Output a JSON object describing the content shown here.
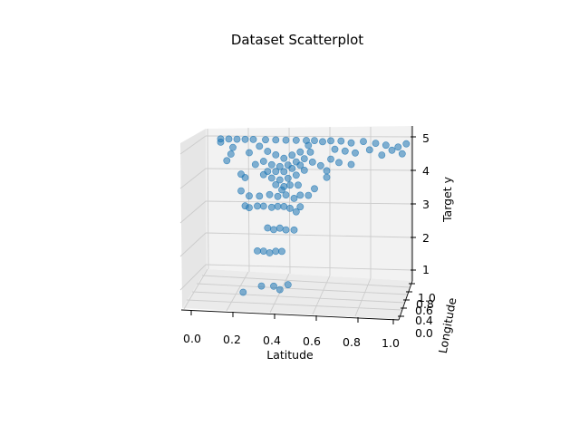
{
  "chart_data": {
    "type": "scatter",
    "projection": "3d",
    "title": "Dataset Scatterplot",
    "xlabel": "Latitude",
    "ylabel": "Longitude",
    "zlabel": "Target y",
    "xlim": [
      0.0,
      1.0
    ],
    "ylim": [
      0.0,
      1.0
    ],
    "zlim": [
      1.0,
      5.0
    ],
    "xticks": [
      "0.0",
      "0.2",
      "0.4",
      "0.6",
      "0.8",
      "1.0"
    ],
    "yticks": [
      "0.0",
      "0.2",
      "0.4",
      "0.6",
      "0.8",
      "1.0"
    ],
    "zticks": [
      "1",
      "2",
      "3",
      "4",
      "5"
    ],
    "grid": true,
    "marker_color": "#1f77b4",
    "marker_alpha": 0.55,
    "series": [
      {
        "points": [
          [
            0.28,
            0.5,
            4.95
          ],
          [
            0.33,
            0.5,
            4.95
          ],
          [
            0.38,
            0.5,
            4.95
          ],
          [
            0.43,
            0.5,
            4.95
          ],
          [
            0.48,
            0.5,
            4.95
          ],
          [
            0.06,
            0.5,
            4.95
          ],
          [
            0.1,
            0.5,
            4.95
          ],
          [
            0.14,
            0.5,
            4.95
          ],
          [
            0.18,
            0.5,
            4.95
          ],
          [
            0.22,
            0.5,
            4.95
          ],
          [
            0.52,
            0.5,
            4.95
          ],
          [
            0.56,
            0.5,
            4.92
          ],
          [
            0.6,
            0.5,
            4.95
          ],
          [
            0.65,
            0.5,
            4.95
          ],
          [
            0.7,
            0.5,
            4.9
          ],
          [
            0.76,
            0.5,
            4.95
          ],
          [
            0.82,
            0.5,
            4.9
          ],
          [
            0.87,
            0.5,
            4.85
          ],
          [
            0.93,
            0.5,
            4.8
          ],
          [
            0.97,
            0.5,
            4.9
          ],
          [
            0.62,
            0.5,
            4.7
          ],
          [
            0.67,
            0.5,
            4.65
          ],
          [
            0.72,
            0.5,
            4.6
          ],
          [
            0.79,
            0.5,
            4.7
          ],
          [
            0.85,
            0.5,
            4.55
          ],
          [
            0.9,
            0.5,
            4.7
          ],
          [
            0.95,
            0.5,
            4.6
          ],
          [
            0.6,
            0.5,
            4.4
          ],
          [
            0.64,
            0.5,
            4.3
          ],
          [
            0.7,
            0.5,
            4.25
          ],
          [
            0.55,
            0.5,
            4.2
          ],
          [
            0.58,
            0.5,
            4.05
          ],
          [
            0.58,
            0.5,
            3.85
          ],
          [
            0.52,
            0.5,
            3.5
          ],
          [
            0.11,
            0.5,
            4.5
          ],
          [
            0.12,
            0.5,
            4.7
          ],
          [
            0.09,
            0.5,
            4.3
          ],
          [
            0.06,
            0.5,
            4.85
          ],
          [
            0.16,
            0.5,
            3.9
          ],
          [
            0.18,
            0.5,
            3.8
          ],
          [
            0.16,
            0.5,
            3.4
          ],
          [
            0.18,
            0.5,
            2.95
          ],
          [
            0.2,
            0.5,
            2.9
          ],
          [
            0.2,
            0.5,
            3.25
          ],
          [
            0.24,
            0.5,
            2.95
          ],
          [
            0.27,
            0.5,
            2.95
          ],
          [
            0.31,
            0.5,
            2.92
          ],
          [
            0.34,
            0.5,
            2.95
          ],
          [
            0.37,
            0.5,
            2.95
          ],
          [
            0.4,
            0.5,
            2.9
          ],
          [
            0.43,
            0.5,
            2.8
          ],
          [
            0.45,
            0.5,
            2.95
          ],
          [
            0.25,
            0.5,
            3.25
          ],
          [
            0.3,
            0.5,
            3.3
          ],
          [
            0.34,
            0.5,
            3.25
          ],
          [
            0.38,
            0.5,
            3.3
          ],
          [
            0.42,
            0.5,
            3.2
          ],
          [
            0.45,
            0.5,
            3.3
          ],
          [
            0.49,
            0.5,
            3.3
          ],
          [
            0.44,
            0.5,
            3.6
          ],
          [
            0.29,
            0.5,
            2.3
          ],
          [
            0.32,
            0.5,
            2.25
          ],
          [
            0.35,
            0.5,
            2.3
          ],
          [
            0.38,
            0.5,
            2.25
          ],
          [
            0.42,
            0.5,
            2.25
          ],
          [
            0.24,
            0.5,
            1.6
          ],
          [
            0.27,
            0.5,
            1.6
          ],
          [
            0.3,
            0.5,
            1.55
          ],
          [
            0.33,
            0.5,
            1.6
          ],
          [
            0.36,
            0.5,
            1.6
          ],
          [
            0.17,
            0.5,
            0.35
          ],
          [
            0.26,
            0.5,
            0.55
          ],
          [
            0.32,
            0.5,
            0.55
          ],
          [
            0.35,
            0.5,
            0.45
          ],
          [
            0.39,
            0.5,
            0.6
          ],
          [
            0.2,
            0.5,
            4.55
          ],
          [
            0.23,
            0.5,
            4.2
          ],
          [
            0.27,
            0.5,
            3.9
          ],
          [
            0.31,
            0.5,
            3.8
          ],
          [
            0.35,
            0.5,
            3.75
          ],
          [
            0.39,
            0.5,
            3.8
          ],
          [
            0.43,
            0.5,
            3.9
          ],
          [
            0.47,
            0.5,
            4.05
          ],
          [
            0.51,
            0.5,
            4.3
          ],
          [
            0.5,
            0.5,
            4.6
          ],
          [
            0.25,
            0.5,
            4.75
          ],
          [
            0.29,
            0.5,
            4.6
          ],
          [
            0.33,
            0.5,
            4.5
          ],
          [
            0.37,
            0.5,
            4.4
          ],
          [
            0.41,
            0.5,
            4.5
          ],
          [
            0.45,
            0.5,
            4.6
          ],
          [
            0.49,
            0.5,
            4.8
          ],
          [
            0.27,
            0.5,
            4.3
          ],
          [
            0.31,
            0.5,
            4.2
          ],
          [
            0.35,
            0.5,
            4.15
          ],
          [
            0.39,
            0.5,
            4.2
          ],
          [
            0.43,
            0.5,
            4.3
          ],
          [
            0.47,
            0.5,
            4.4
          ],
          [
            0.29,
            0.5,
            4.0
          ],
          [
            0.33,
            0.5,
            4.0
          ],
          [
            0.37,
            0.5,
            4.0
          ],
          [
            0.41,
            0.5,
            4.1
          ],
          [
            0.45,
            0.5,
            4.2
          ],
          [
            0.33,
            0.5,
            3.6
          ],
          [
            0.37,
            0.5,
            3.55
          ],
          [
            0.4,
            0.5,
            3.6
          ],
          [
            0.36,
            0.5,
            3.45
          ]
        ]
      }
    ]
  }
}
